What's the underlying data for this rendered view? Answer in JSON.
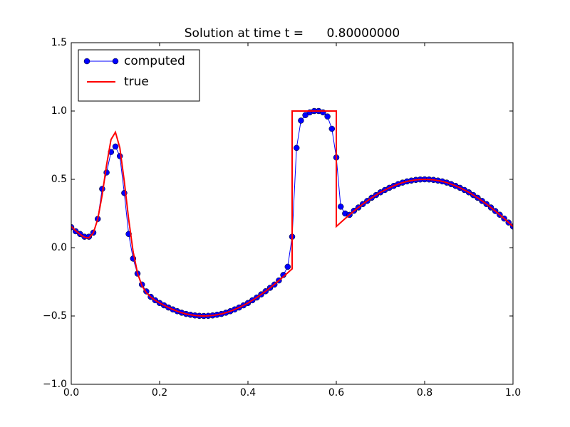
{
  "chart_data": {
    "type": "line",
    "title": "Solution at time t =      0.80000000",
    "xlim": [
      0,
      1
    ],
    "ylim": [
      -1,
      1.5
    ],
    "xticks": [
      {
        "value": 0,
        "label": "0.0"
      },
      0.2,
      0.4,
      0.6,
      0.8,
      {
        "value": 1,
        "label": "1.0"
      }
    ],
    "yticks": [
      {
        "value": -1,
        "label": "−1.0"
      },
      {
        "value": -0.5,
        "label": "−0.5"
      },
      {
        "value": 0,
        "label": "0.0"
      },
      0.5,
      {
        "value": 1,
        "label": "1.0"
      },
      1.5
    ],
    "grid": false,
    "legend": "upper left",
    "series": [
      {
        "name": "computed",
        "color": "#0000ff",
        "marker": "o",
        "x": [
          0,
          0.01,
          0.02,
          0.03,
          0.04,
          0.05,
          0.06,
          0.07,
          0.08,
          0.09,
          0.1,
          0.11,
          0.12,
          0.13,
          0.14,
          0.15,
          0.16,
          0.17,
          0.18,
          0.19,
          0.2,
          0.21,
          0.22,
          0.23,
          0.24,
          0.25,
          0.26,
          0.27,
          0.28,
          0.29,
          0.3,
          0.31,
          0.32,
          0.33,
          0.34,
          0.35,
          0.36,
          0.37,
          0.38,
          0.39,
          0.4,
          0.41,
          0.42,
          0.43,
          0.44,
          0.45,
          0.46,
          0.47,
          0.48,
          0.49,
          0.5,
          0.51,
          0.52,
          0.53,
          0.54,
          0.55,
          0.56,
          0.57,
          0.58,
          0.59,
          0.6,
          0.61,
          0.62,
          0.63,
          0.64,
          0.65,
          0.66,
          0.67,
          0.68,
          0.69,
          0.7,
          0.71,
          0.72,
          0.73,
          0.74,
          0.75,
          0.76,
          0.77,
          0.78,
          0.79,
          0.8,
          0.81,
          0.82,
          0.83,
          0.84,
          0.85,
          0.86,
          0.87,
          0.88,
          0.89,
          0.9,
          0.91,
          0.92,
          0.93,
          0.94,
          0.95,
          0.96,
          0.97,
          0.98,
          0.99,
          1
        ],
        "values": [
          0.15,
          0.12,
          0.1,
          0.08,
          0.08,
          0.11,
          0.21,
          0.43,
          0.55,
          0.7,
          0.74,
          0.67,
          0.4,
          0.1,
          -0.08,
          -0.19,
          -0.27,
          -0.32,
          -0.36,
          -0.385,
          -0.405,
          -0.422,
          -0.438,
          -0.452,
          -0.465,
          -0.476,
          -0.485,
          -0.491,
          -0.496,
          -0.499,
          -0.5,
          -0.499,
          -0.496,
          -0.491,
          -0.485,
          -0.476,
          -0.465,
          -0.452,
          -0.438,
          -0.422,
          -0.405,
          -0.385,
          -0.365,
          -0.342,
          -0.319,
          -0.294,
          -0.27,
          -0.24,
          -0.2,
          -0.14,
          0.08,
          0.73,
          0.93,
          0.97,
          0.99,
          1,
          1,
          0.99,
          0.96,
          0.87,
          0.66,
          0.3,
          0.25,
          0.24,
          0.27,
          0.294,
          0.319,
          0.342,
          0.365,
          0.385,
          0.405,
          0.422,
          0.438,
          0.452,
          0.465,
          0.476,
          0.485,
          0.491,
          0.496,
          0.499,
          0.5,
          0.499,
          0.496,
          0.491,
          0.485,
          0.476,
          0.465,
          0.452,
          0.438,
          0.422,
          0.405,
          0.385,
          0.365,
          0.342,
          0.319,
          0.294,
          0.268,
          0.241,
          0.213,
          0.184,
          0.155
        ]
      },
      {
        "name": "true",
        "color": "#ff0000",
        "x": [
          0,
          0.01,
          0.02,
          0.03,
          0.04,
          0.05,
          0.06,
          0.07,
          0.08,
          0.09,
          0.1,
          0.11,
          0.12,
          0.13,
          0.14,
          0.15,
          0.16,
          0.17,
          0.18,
          0.19,
          0.2,
          0.21,
          0.22,
          0.23,
          0.24,
          0.25,
          0.26,
          0.27,
          0.28,
          0.29,
          0.3,
          0.31,
          0.32,
          0.33,
          0.34,
          0.35,
          0.36,
          0.37,
          0.38,
          0.39,
          0.4,
          0.41,
          0.42,
          0.43,
          0.44,
          0.45,
          0.46,
          0.47,
          0.48,
          0.49,
          0.5,
          0.5,
          0.51,
          0.52,
          0.53,
          0.54,
          0.55,
          0.56,
          0.57,
          0.58,
          0.59,
          0.6,
          0.6,
          0.61,
          0.62,
          0.63,
          0.64,
          0.65,
          0.66,
          0.67,
          0.68,
          0.69,
          0.7,
          0.71,
          0.72,
          0.73,
          0.74,
          0.75,
          0.76,
          0.77,
          0.78,
          0.79,
          0.8,
          0.81,
          0.82,
          0.83,
          0.84,
          0.85,
          0.86,
          0.87,
          0.88,
          0.89,
          0.9,
          0.91,
          0.92,
          0.93,
          0.94,
          0.95,
          0.96,
          0.97,
          0.98,
          0.99,
          1
        ],
        "values": [
          0.155,
          0.124,
          0.097,
          0.076,
          0.071,
          0.108,
          0.209,
          0.385,
          0.606,
          0.791,
          0.845,
          0.731,
          0.487,
          0.207,
          -0.028,
          -0.186,
          -0.279,
          -0.329,
          -0.362,
          -0.385,
          -0.405,
          -0.422,
          -0.438,
          -0.452,
          -0.465,
          -0.476,
          -0.485,
          -0.491,
          -0.496,
          -0.499,
          -0.5,
          -0.499,
          -0.496,
          -0.491,
          -0.485,
          -0.476,
          -0.465,
          -0.452,
          -0.438,
          -0.422,
          -0.405,
          -0.385,
          -0.365,
          -0.342,
          -0.319,
          -0.294,
          -0.268,
          -0.241,
          -0.213,
          -0.184,
          -0.155,
          1,
          1,
          1,
          1,
          1,
          1,
          1,
          1,
          1,
          1,
          1,
          0.155,
          0.184,
          0.213,
          0.241,
          0.268,
          0.294,
          0.319,
          0.342,
          0.365,
          0.385,
          0.405,
          0.422,
          0.438,
          0.452,
          0.465,
          0.476,
          0.485,
          0.491,
          0.496,
          0.499,
          0.5,
          0.499,
          0.496,
          0.491,
          0.485,
          0.476,
          0.465,
          0.452,
          0.438,
          0.422,
          0.405,
          0.385,
          0.365,
          0.342,
          0.319,
          0.294,
          0.268,
          0.241,
          0.213,
          0.184,
          0.155
        ]
      }
    ]
  }
}
